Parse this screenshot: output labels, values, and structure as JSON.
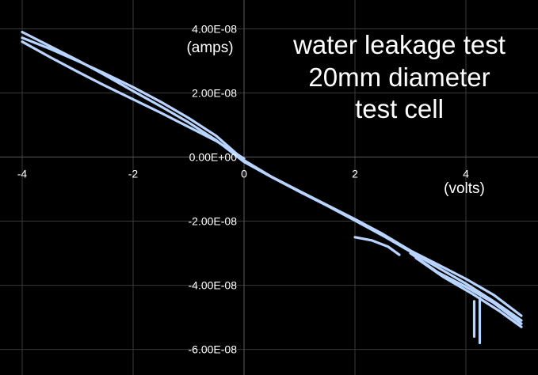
{
  "chart_data": {
    "type": "line",
    "title_lines": [
      "water leakage test",
      "20mm diameter",
      "test cell"
    ],
    "xlabel": "(volts)",
    "ylabel": "(amps)",
    "xlim": [
      -4.4,
      5.3
    ],
    "ylim": [
      -6.8e-08,
      4.9e-08
    ],
    "x_ticks": [
      -4,
      -2,
      0,
      2,
      4
    ],
    "x_tick_labels": [
      "-4",
      "-2",
      "0",
      "2",
      "4"
    ],
    "y_ticks": [
      4e-08,
      2e-08,
      0,
      -2e-08,
      -4e-08,
      -6e-08
    ],
    "y_tick_labels": [
      "4.00E-08",
      "2.00E-08",
      "0.00E+00",
      "-2.00E-08",
      "-4.00E-08",
      "-6.00E-08"
    ],
    "grid": true,
    "line_color": "#b8d4ff",
    "background": "#000000",
    "series": [
      {
        "x": [
          -4.0,
          -3.5,
          -3.0,
          -2.5,
          -2.0,
          -1.5,
          -1.0,
          -0.5,
          0.0,
          0.5,
          1.0,
          1.5,
          2.0,
          2.5,
          3.0,
          3.5,
          4.0,
          4.5,
          5.0
        ],
        "y": [
          3.72e-08,
          3.38e-08,
          3e-08,
          2.6e-08,
          2.18e-08,
          1.72e-08,
          1.22e-08,
          6.6e-09,
          -1e-09,
          -6.2e-09,
          -1.06e-08,
          -1.5e-08,
          -1.94e-08,
          -2.4e-08,
          -2.92e-08,
          -3.36e-08,
          -3.8e-08,
          -4.3e-08,
          -4.95e-08
        ]
      },
      {
        "x": [
          5.0,
          4.5,
          4.0,
          3.5,
          3.0,
          2.5,
          2.0,
          1.5,
          1.0,
          0.5,
          0.0,
          -0.5,
          -1.0,
          -1.5,
          -2.0,
          -2.5,
          -3.0,
          -3.5,
          -4.0
        ],
        "y": [
          -5.1e-08,
          -4.5e-08,
          -3.95e-08,
          -3.45e-08,
          -2.95e-08,
          -2.45e-08,
          -1.98e-08,
          -1.52e-08,
          -1.08e-08,
          -6.3e-09,
          -1.5e-09,
          5.2e-09,
          1.08e-08,
          1.58e-08,
          2.06e-08,
          2.55e-08,
          3.02e-08,
          3.46e-08,
          3.9e-08
        ]
      },
      {
        "x": [
          -4.0,
          -3.5,
          -3.0,
          -2.5,
          -2.0,
          -1.5,
          -1.0,
          -0.5,
          0.0
        ],
        "y": [
          3.6e-08,
          3.12e-08,
          2.66e-08,
          2.22e-08,
          1.8e-08,
          1.38e-08,
          9.4e-09,
          5e-09,
          -5e-10
        ]
      },
      {
        "x": [
          3.0,
          3.5,
          4.0,
          4.5,
          5.0
        ],
        "y": [
          -3e-08,
          -3.6e-08,
          -4.05e-08,
          -4.55e-08,
          -5.2e-08
        ]
      },
      {
        "x": [
          3.1,
          3.6,
          4.1,
          4.6,
          5.0
        ],
        "y": [
          -3.15e-08,
          -3.75e-08,
          -4.25e-08,
          -4.8e-08,
          -5.3e-08
        ]
      },
      {
        "x": [
          2.0,
          2.3,
          2.6,
          2.8
        ],
        "y": [
          -2.5e-08,
          -2.6e-08,
          -2.8e-08,
          -3.05e-08
        ]
      },
      {
        "x": [
          4.25,
          4.25
        ],
        "y": [
          -4.4e-08,
          -5.8e-08
        ]
      },
      {
        "x": [
          4.15,
          4.15
        ],
        "y": [
          -4.5e-08,
          -5.6e-08
        ]
      }
    ]
  }
}
